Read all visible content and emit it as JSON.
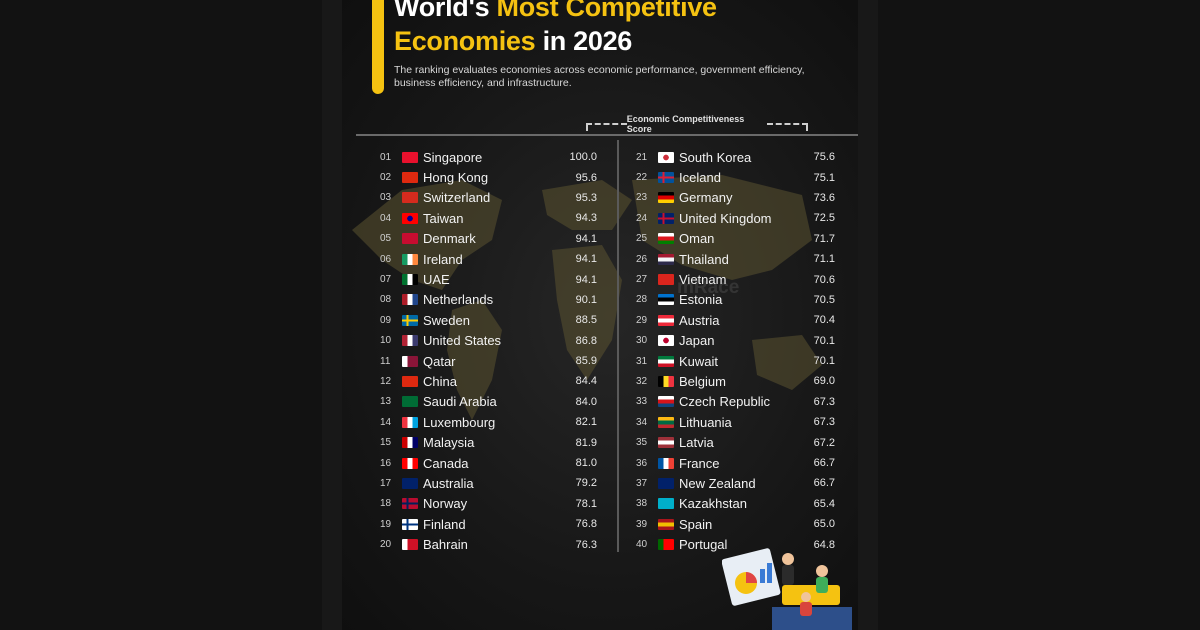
{
  "title": {
    "part1": "World's",
    "part2": "Most Competitive",
    "part3": "Economies",
    "part4": "in 2026"
  },
  "subtitle": "The ranking evaluates economies across economic performance, government efficiency, business efficiency, and infrastructure.",
  "watermark": "mRace",
  "colors": {
    "accent": "#f5c211",
    "background": "#171717",
    "text": "#f2f2f2"
  },
  "chart_data": {
    "type": "table",
    "score_header": "Economic Competitiveness Score",
    "rows": [
      {
        "rank": "01",
        "country": "Singapore",
        "score": "100.0",
        "flag": [
          "#e8112d",
          "#ffffff",
          "h"
        ]
      },
      {
        "rank": "02",
        "country": "Hong Kong",
        "score": "95.6",
        "flag": [
          "#de2910",
          "#de2910",
          "h"
        ]
      },
      {
        "rank": "03",
        "country": "Switzerland",
        "score": "95.3",
        "flag": [
          "#d52b1e",
          "#d52b1e",
          "h"
        ]
      },
      {
        "rank": "04",
        "country": "Taiwan",
        "score": "94.3",
        "flag": [
          "#fe0000",
          "#000095",
          "c"
        ]
      },
      {
        "rank": "05",
        "country": "Denmark",
        "score": "94.1",
        "flag": [
          "#c60c30",
          "#c60c30",
          "h"
        ]
      },
      {
        "rank": "06",
        "country": "Ireland",
        "score": "94.1",
        "flag": [
          "#169b62",
          "#ffffff",
          "#ff883e"
        ]
      },
      {
        "rank": "07",
        "country": "UAE",
        "score": "94.1",
        "flag": [
          "#00732f",
          "#ffffff",
          "#000000"
        ]
      },
      {
        "rank": "08",
        "country": "Netherlands",
        "score": "90.1",
        "flag": [
          "#ae1c28",
          "#ffffff",
          "#21468b"
        ]
      },
      {
        "rank": "09",
        "country": "Sweden",
        "score": "88.5",
        "flag": [
          "#006aa7",
          "#fecc00",
          "x"
        ]
      },
      {
        "rank": "10",
        "country": "United States",
        "score": "86.8",
        "flag": [
          "#b22234",
          "#ffffff",
          "#3c3b6e"
        ]
      },
      {
        "rank": "11",
        "country": "Qatar",
        "score": "85.9",
        "flag": [
          "#ffffff",
          "#8a1538",
          "v"
        ]
      },
      {
        "rank": "12",
        "country": "China",
        "score": "84.4",
        "flag": [
          "#de2910",
          "#de2910",
          "h"
        ]
      },
      {
        "rank": "13",
        "country": "Saudi Arabia",
        "score": "84.0",
        "flag": [
          "#006c35",
          "#006c35",
          "h"
        ]
      },
      {
        "rank": "14",
        "country": "Luxembourg",
        "score": "82.1",
        "flag": [
          "#ef3340",
          "#ffffff",
          "#00a3e0"
        ]
      },
      {
        "rank": "15",
        "country": "Malaysia",
        "score": "81.9",
        "flag": [
          "#cc0001",
          "#ffffff",
          "#010066"
        ]
      },
      {
        "rank": "16",
        "country": "Canada",
        "score": "81.0",
        "flag": [
          "#ff0000",
          "#ffffff",
          "#ff0000"
        ]
      },
      {
        "rank": "17",
        "country": "Australia",
        "score": "79.2",
        "flag": [
          "#012169",
          "#012169",
          "h"
        ]
      },
      {
        "rank": "18",
        "country": "Norway",
        "score": "78.1",
        "flag": [
          "#ba0c2f",
          "#00205b",
          "x"
        ]
      },
      {
        "rank": "19",
        "country": "Finland",
        "score": "76.8",
        "flag": [
          "#ffffff",
          "#003580",
          "x"
        ]
      },
      {
        "rank": "20",
        "country": "Bahrain",
        "score": "76.3",
        "flag": [
          "#ffffff",
          "#ce1126",
          "v"
        ]
      },
      {
        "rank": "21",
        "country": "South Korea",
        "score": "75.6",
        "flag": [
          "#ffffff",
          "#cd2e3a",
          "c"
        ]
      },
      {
        "rank": "22",
        "country": "Iceland",
        "score": "75.1",
        "flag": [
          "#02529c",
          "#dc1e35",
          "x"
        ]
      },
      {
        "rank": "23",
        "country": "Germany",
        "score": "73.6",
        "flag": [
          "#000000",
          "#dd0000",
          "#ffce00",
          "hz"
        ]
      },
      {
        "rank": "24",
        "country": "United Kingdom",
        "score": "72.5",
        "flag": [
          "#012169",
          "#c8102e",
          "x"
        ]
      },
      {
        "rank": "25",
        "country": "Oman",
        "score": "71.7",
        "flag": [
          "#ffffff",
          "#db161b",
          "#008000",
          "hz"
        ]
      },
      {
        "rank": "26",
        "country": "Thailand",
        "score": "71.1",
        "flag": [
          "#a51931",
          "#f4f5f8",
          "#2d2a4a",
          "hz"
        ]
      },
      {
        "rank": "27",
        "country": "Vietnam",
        "score": "70.6",
        "flag": [
          "#da251d",
          "#da251d",
          "h"
        ]
      },
      {
        "rank": "28",
        "country": "Estonia",
        "score": "70.5",
        "flag": [
          "#0072ce",
          "#000000",
          "#ffffff",
          "hz"
        ]
      },
      {
        "rank": "29",
        "country": "Austria",
        "score": "70.4",
        "flag": [
          "#ed2939",
          "#ffffff",
          "#ed2939",
          "hz"
        ]
      },
      {
        "rank": "30",
        "country": "Japan",
        "score": "70.1",
        "flag": [
          "#ffffff",
          "#bc002d",
          "c"
        ]
      },
      {
        "rank": "31",
        "country": "Kuwait",
        "score": "70.1",
        "flag": [
          "#007a3d",
          "#ffffff",
          "#ce1126",
          "hz"
        ]
      },
      {
        "rank": "32",
        "country": "Belgium",
        "score": "69.0",
        "flag": [
          "#000000",
          "#fdda24",
          "#ef3340"
        ]
      },
      {
        "rank": "33",
        "country": "Czech Republic",
        "score": "67.3",
        "flag": [
          "#ffffff",
          "#d7141a",
          "#11457e",
          "hz"
        ]
      },
      {
        "rank": "34",
        "country": "Lithuania",
        "score": "67.3",
        "flag": [
          "#fdb913",
          "#006a44",
          "#c1272d",
          "hz"
        ]
      },
      {
        "rank": "35",
        "country": "Latvia",
        "score": "67.2",
        "flag": [
          "#9e3039",
          "#ffffff",
          "#9e3039",
          "hz"
        ]
      },
      {
        "rank": "36",
        "country": "France",
        "score": "66.7",
        "flag": [
          "#0055a4",
          "#ffffff",
          "#ef4135"
        ]
      },
      {
        "rank": "37",
        "country": "New Zealand",
        "score": "66.7",
        "flag": [
          "#012169",
          "#012169",
          "h"
        ]
      },
      {
        "rank": "38",
        "country": "Kazakhstan",
        "score": "65.4",
        "flag": [
          "#00afca",
          "#00afca",
          "h"
        ]
      },
      {
        "rank": "39",
        "country": "Spain",
        "score": "65.0",
        "flag": [
          "#aa151b",
          "#f1bf00",
          "#aa151b",
          "hz"
        ]
      },
      {
        "rank": "40",
        "country": "Portugal",
        "score": "64.8",
        "flag": [
          "#006600",
          "#ff0000",
          "v"
        ]
      }
    ]
  }
}
